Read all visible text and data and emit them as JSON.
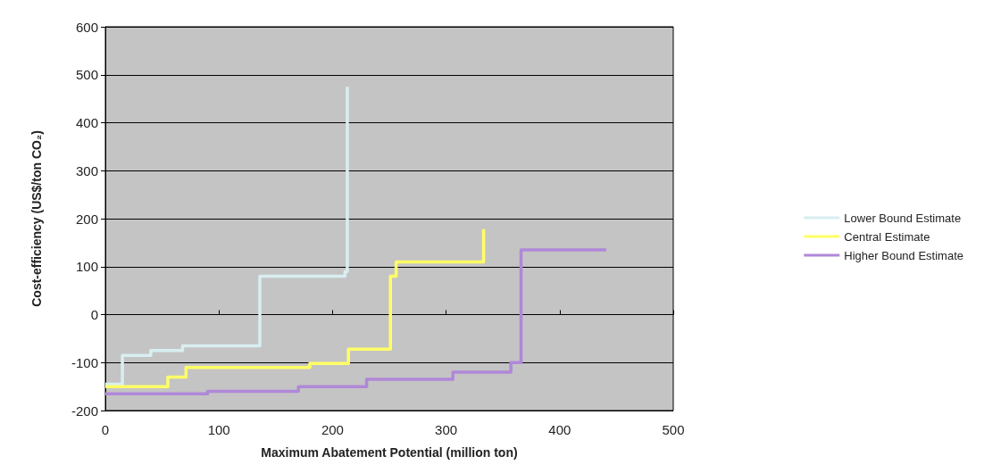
{
  "chart_data": {
    "type": "step",
    "xlabel": "Maximum Abatement Potential (million ton)",
    "ylabel": "Cost-efficiency (US$/ton CO₂)",
    "xlim": [
      0,
      500
    ],
    "xticks": [
      0,
      100,
      200,
      300,
      400,
      500
    ],
    "ylim": [
      -200,
      600
    ],
    "yticks": [
      -200,
      -100,
      0,
      100,
      200,
      300,
      400,
      500,
      600
    ],
    "grid": "y",
    "legend": "right",
    "marker": "none",
    "line_style": "solid",
    "series": [
      {
        "name": "Lower Bound Estimate",
        "color": "#d8eef0",
        "x": [
          0,
          15,
          40,
          68,
          136,
          211,
          213
        ],
        "values": [
          -145,
          -85,
          -75,
          -65,
          80,
          90,
          475
        ]
      },
      {
        "name": "Central Estimate",
        "color": "#ffff66",
        "x": [
          0,
          55,
          71,
          180,
          214,
          251,
          256,
          333
        ],
        "values": [
          -150,
          -130,
          -110,
          -102,
          -72,
          80,
          110,
          178
        ]
      },
      {
        "name": "Higher Bound Estimate",
        "color": "#b088d8",
        "x": [
          0,
          90,
          170,
          230,
          306,
          357,
          366,
          441
        ],
        "values": [
          -165,
          -160,
          -150,
          -135,
          -120,
          -100,
          135,
          135
        ]
      }
    ]
  }
}
